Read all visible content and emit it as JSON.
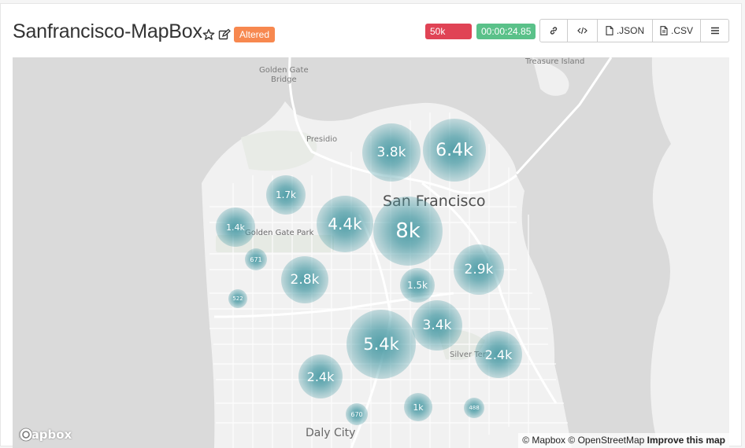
{
  "header": {
    "title": "Sanfrancisco-MapBox",
    "altered_label": "Altered",
    "rows_badge": "50k rows",
    "timer_badge": "00:00:24.85",
    "colors": {
      "rows": "#e04355",
      "timer": "#5ac189",
      "altered": "#f7884f"
    }
  },
  "toolbar": {
    "link_icon": "link-icon",
    "embed_icon": "code-icon",
    "json_label": ".JSON",
    "csv_label": ".CSV",
    "menu_icon": "hamburger-icon"
  },
  "map": {
    "places": {
      "golden_gate_bridge_1": "Golden Gate",
      "golden_gate_bridge_2": "Bridge",
      "treasure_island": "Treasure Island",
      "presidio": "Presidio",
      "san_francisco": "San Francisco",
      "golden_gate_park": "Golden Gate Park",
      "silver_terrace": "Silver Ter",
      "daly_city": "Daly City"
    },
    "clusters": [
      {
        "label": "3.8k"
      },
      {
        "label": "6.4k"
      },
      {
        "label": "1.7k"
      },
      {
        "label": "4.4k"
      },
      {
        "label": "8k"
      },
      {
        "label": "1.4k"
      },
      {
        "label": "671"
      },
      {
        "label": "2.8k"
      },
      {
        "label": "2.9k"
      },
      {
        "label": "1.5k"
      },
      {
        "label": "522"
      },
      {
        "label": "3.4k"
      },
      {
        "label": "5.4k"
      },
      {
        "label": "2.4k"
      },
      {
        "label": "2.4k"
      },
      {
        "label": "1k"
      },
      {
        "label": "488"
      },
      {
        "label": "670"
      }
    ],
    "cluster_color": "#4a9ba5",
    "logo": "mapbox",
    "attribution": {
      "mapbox": "© Mapbox",
      "osm": "© OpenStreetMap",
      "improve": "Improve this map"
    }
  }
}
